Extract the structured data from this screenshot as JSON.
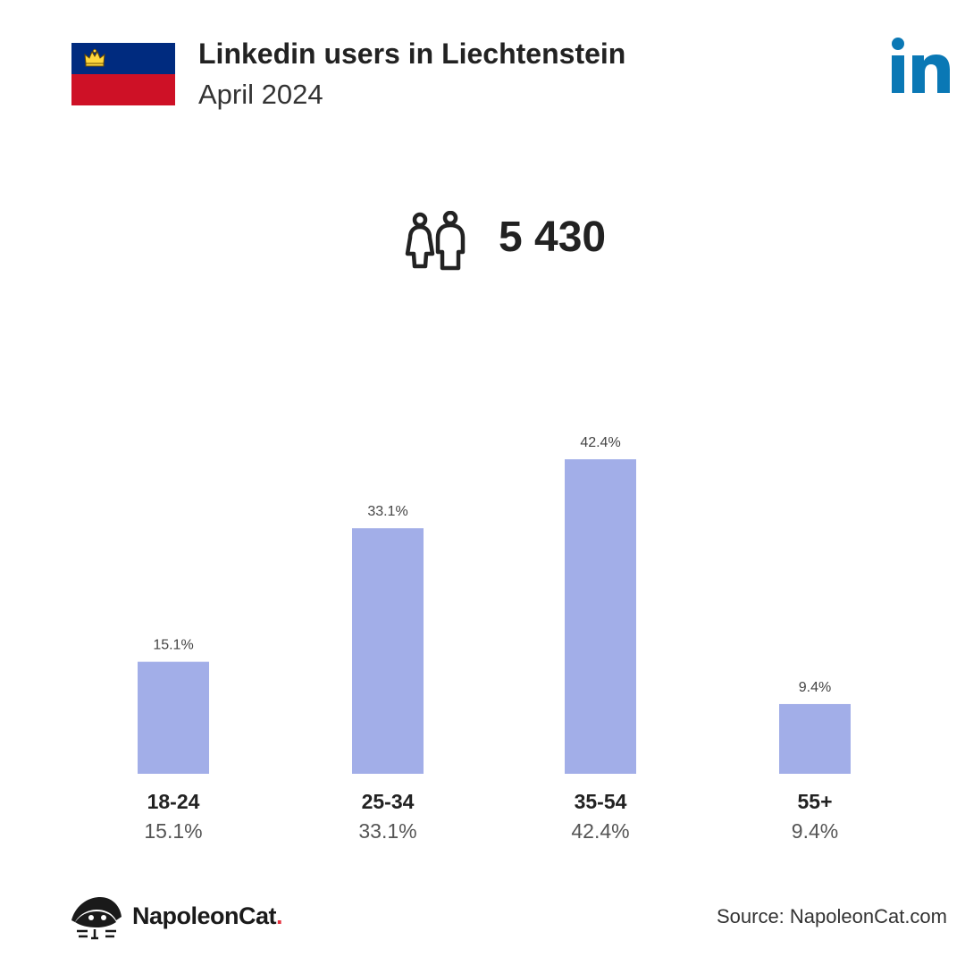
{
  "header": {
    "title": "Linkedin users in Liechtenstein",
    "subtitle": "April 2024",
    "total_users": "5 430"
  },
  "brand": {
    "logo_text": "NapoleonCat",
    "logo_dot": ".",
    "source": "Source: NapoleonCat.com"
  },
  "colors": {
    "bar": "#a2aee8",
    "linkedin": "#0a78b5",
    "flag_blue": "#002b7f",
    "flag_red": "#ce1126",
    "crown": "#ffd83d"
  },
  "icons": {
    "flag": "liechtenstein-flag-icon",
    "linkedin": "linkedin-logo-icon",
    "users": "users-icon",
    "brand": "napoleoncat-logo-icon"
  },
  "chart_data": {
    "type": "bar",
    "categories": [
      "18-24",
      "25-34",
      "35-54",
      "55+"
    ],
    "values": [
      15.1,
      33.1,
      42.4,
      9.4
    ],
    "value_labels": [
      "15.1%",
      "33.1%",
      "42.4%",
      "9.4%"
    ],
    "title": "",
    "xlabel": "",
    "ylabel": "",
    "ylim": [
      0,
      42.4
    ],
    "grid": false,
    "legend": "none"
  }
}
